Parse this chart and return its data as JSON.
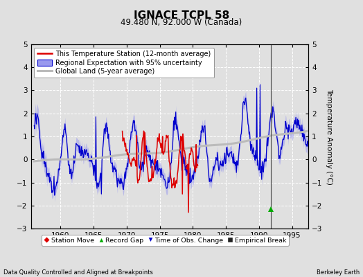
{
  "title": "IGNACE TCPL 58",
  "subtitle": "49.480 N, 92.000 W (Canada)",
  "ylabel": "Temperature Anomaly (°C)",
  "xlabel_bottom_left": "Data Quality Controlled and Aligned at Breakpoints",
  "xlabel_bottom_right": "Berkeley Earth",
  "ylim": [
    -3,
    5
  ],
  "xlim": [
    1955.5,
    1997.5
  ],
  "xticks": [
    1960,
    1965,
    1970,
    1975,
    1980,
    1985,
    1990,
    1995
  ],
  "yticks": [
    -3,
    -2,
    -1,
    0,
    1,
    2,
    3,
    4,
    5
  ],
  "bg_color": "#e0e0e0",
  "plot_bg_color": "#e0e0e0",
  "grid_color": "#ffffff",
  "blue_line_color": "#0000cc",
  "blue_fill_color": "#9999ee",
  "red_line_color": "#dd0000",
  "gray_line_color": "#bbbbbb",
  "vertical_line_x": 1991.75,
  "vertical_line_color": "#444444",
  "record_gap_x": 1991.75,
  "record_gap_y": -2.15,
  "legend1_labels": [
    "This Temperature Station (12-month average)",
    "Regional Expectation with 95% uncertainty",
    "Global Land (5-year average)"
  ],
  "legend2_labels": [
    "Station Move",
    "Record Gap",
    "Time of Obs. Change",
    "Empirical Break"
  ]
}
